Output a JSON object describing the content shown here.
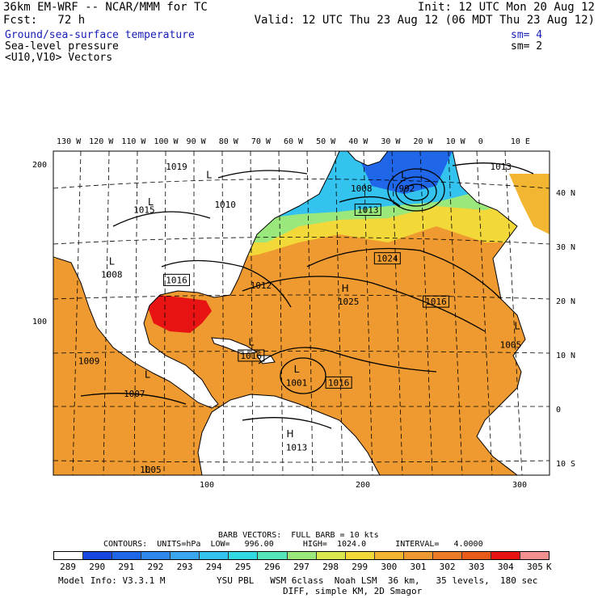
{
  "header": {
    "model_line": "36km EM-WRF -- NCAR/MMM for TC",
    "init_line": "Init: 12 UTC Mon 20 Aug 12",
    "fcst_line": "Fcst:   72 h",
    "valid_line": "Valid: 12 UTC Thu 23 Aug 12 (06 MDT Thu 23 Aug 12)",
    "field1": "Ground/sea-surface temperature",
    "field1_sm": "sm= 4",
    "field2": "Sea-level pressure",
    "field2_sm": "sm= 2",
    "field3": "<U10,V10> Vectors"
  },
  "axes": {
    "top_longitudes": [
      "130 W",
      "120 W",
      "110 W",
      "100 W",
      "90 W",
      "80 W",
      "70 W",
      "60 W",
      "50 W",
      "40 W",
      "30 W",
      "20 W",
      "10 W",
      "0",
      "10 E"
    ],
    "right_latitudes": [
      "40 N",
      "30 N",
      "20 N",
      "10 N",
      "0",
      "10 S"
    ],
    "left_grid": [
      "200",
      "100"
    ],
    "bottom_grid": [
      "100",
      "200",
      "300"
    ]
  },
  "pressure_labels": [
    {
      "text": "1008",
      "boxed": false,
      "lon": -38,
      "lat": 41
    },
    {
      "text": "1013",
      "boxed": true,
      "lon": -36,
      "lat": 37
    },
    {
      "text": "992",
      "boxed": false,
      "lon": -24,
      "lat": 41
    },
    {
      "text": "1013",
      "boxed": false,
      "lon": 5,
      "lat": 45
    },
    {
      "text": "1019",
      "boxed": false,
      "lon": -95,
      "lat": 45
    },
    {
      "text": "1010",
      "boxed": false,
      "lon": -80,
      "lat": 38
    },
    {
      "text": "1015",
      "boxed": false,
      "lon": -105,
      "lat": 37
    },
    {
      "text": "1024",
      "boxed": true,
      "lon": -30,
      "lat": 28
    },
    {
      "text": "1012",
      "boxed": false,
      "lon": -69,
      "lat": 23
    },
    {
      "text": "1016",
      "boxed": true,
      "lon": -95,
      "lat": 24
    },
    {
      "text": "1008",
      "boxed": false,
      "lon": -115,
      "lat": 25
    },
    {
      "text": "1025",
      "boxed": false,
      "lon": -42,
      "lat": 20
    },
    {
      "text": "1016",
      "boxed": true,
      "lon": -15,
      "lat": 20
    },
    {
      "text": "1005",
      "boxed": false,
      "lon": 8,
      "lat": 12
    },
    {
      "text": "1016",
      "boxed": true,
      "lon": -72,
      "lat": 10
    },
    {
      "text": "1001",
      "boxed": false,
      "lon": -58,
      "lat": 5
    },
    {
      "text": "1016",
      "boxed": true,
      "lon": -45,
      "lat": 5
    },
    {
      "text": "1009",
      "boxed": false,
      "lon": -122,
      "lat": 9
    },
    {
      "text": "1007",
      "boxed": false,
      "lon": -108,
      "lat": 3
    },
    {
      "text": "1013",
      "boxed": false,
      "lon": -58,
      "lat": -7
    },
    {
      "text": "1005",
      "boxed": false,
      "lon": -103,
      "lat": -15
    }
  ],
  "pressure_centers": [
    {
      "type": "L",
      "lon": -85,
      "lat": 43
    },
    {
      "type": "L",
      "lon": -25,
      "lat": 43
    },
    {
      "type": "L",
      "lon": -103,
      "lat": 38
    },
    {
      "type": "L",
      "lon": -115,
      "lat": 27
    },
    {
      "type": "H",
      "lon": -43,
      "lat": 22
    },
    {
      "type": "L",
      "lon": 10,
      "lat": 15
    },
    {
      "type": "L",
      "lon": -72,
      "lat": 12
    },
    {
      "type": "L",
      "lon": -58,
      "lat": 7
    },
    {
      "type": "L",
      "lon": -104,
      "lat": 6
    },
    {
      "type": "H",
      "lon": -60,
      "lat": -5
    },
    {
      "type": "L",
      "lon": -104,
      "lat": -13
    }
  ],
  "legend": {
    "barb_line": "BARB VECTORS:  FULL BARB = 10 kts",
    "contours_line": "CONTOURS:  UNITS=hPa  LOW=   996.00      HIGH=  1024.0      INTERVAL=   4.0000",
    "scale_values": [
      "289",
      "290",
      "291",
      "292",
      "293",
      "294",
      "295",
      "296",
      "297",
      "298",
      "299",
      "300",
      "301",
      "302",
      "303",
      "304",
      "305"
    ],
    "scale_unit": "K",
    "scale_colors": [
      "#ffffff",
      "#1846e0",
      "#1f66e8",
      "#2e88ec",
      "#3aa6f0",
      "#33c3ee",
      "#30dae0",
      "#54e6b8",
      "#9ae87c",
      "#d8e84e",
      "#f2d838",
      "#f3b632",
      "#ee9a30",
      "#ec7c28",
      "#ea5a18",
      "#e81414",
      "#f49090"
    ]
  },
  "footer": {
    "model_info": "Model Info: V3.3.1 M",
    "physics": "YSU PBL   WSM 6class  Noah LSM  36 km,   35 levels,  180 sec",
    "diff": "DIFF, simple KM, 2D Smagor"
  },
  "colors": {
    "land": "#ffffff",
    "header_blue": "#1a20b8",
    "tropical_sst": "#ee9a30",
    "warm_sst": "#ec7c28",
    "gulf_sst": "#e81414",
    "mid_sst": "#f2d838",
    "cool_sst": "#33c3ee",
    "cold_sst": "#1f66e8"
  }
}
